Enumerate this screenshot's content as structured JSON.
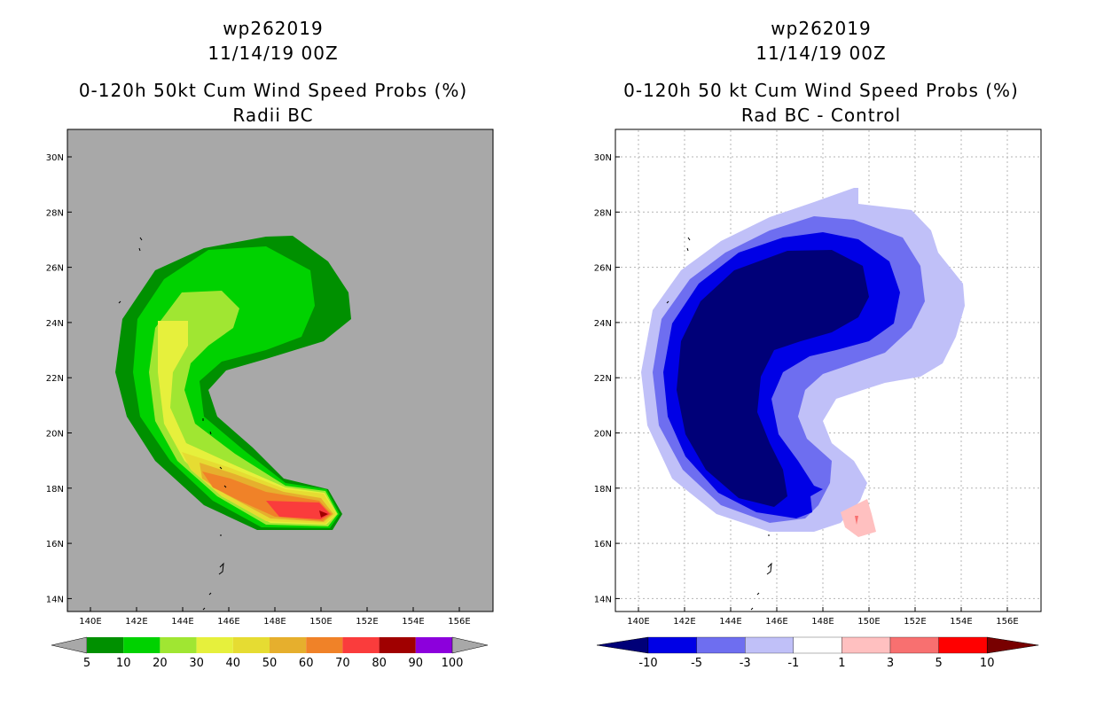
{
  "left": {
    "title_line1": "wp262019",
    "title_line2": "11/14/19 00Z",
    "title_line3": "0-120h 50kt Cum Wind Speed Probs (%)",
    "title_line4": "Radii BC",
    "background_color": "#a8a8a8",
    "colorbar": {
      "colors": [
        "#009000",
        "#00d200",
        "#a0e632",
        "#e6f03c",
        "#e6dc32",
        "#e6af2d",
        "#f08228",
        "#fa3c3c",
        "#a00000",
        "#8c00dc"
      ],
      "labels": [
        "5",
        "10",
        "20",
        "30",
        "40",
        "50",
        "60",
        "70",
        "80",
        "90",
        "100"
      ]
    }
  },
  "right": {
    "title_line1": "wp262019",
    "title_line2": "11/14/19 00Z",
    "title_line3": "0-120h 50 kt Cum Wind Speed Probs (%)",
    "title_line4": "Rad BC - Control",
    "background_color": "#ffffff",
    "colorbar": {
      "colors": [
        "#0000e6",
        "#6e6ef0",
        "#c0c0f8",
        "#ffffff",
        "#ffc0c0",
        "#f87070",
        "#ff0000"
      ],
      "end_colors": [
        "#000078",
        "#780000"
      ],
      "labels": [
        "-10",
        "-5",
        "-3",
        "-1",
        "1",
        "3",
        "5",
        "10"
      ]
    }
  },
  "map": {
    "lat_labels": [
      "30N",
      "28N",
      "26N",
      "24N",
      "22N",
      "20N",
      "18N",
      "16N",
      "14N"
    ],
    "lon_labels": [
      "140E",
      "142E",
      "144E",
      "146E",
      "148E",
      "150E",
      "152E",
      "154E",
      "156E"
    ]
  }
}
